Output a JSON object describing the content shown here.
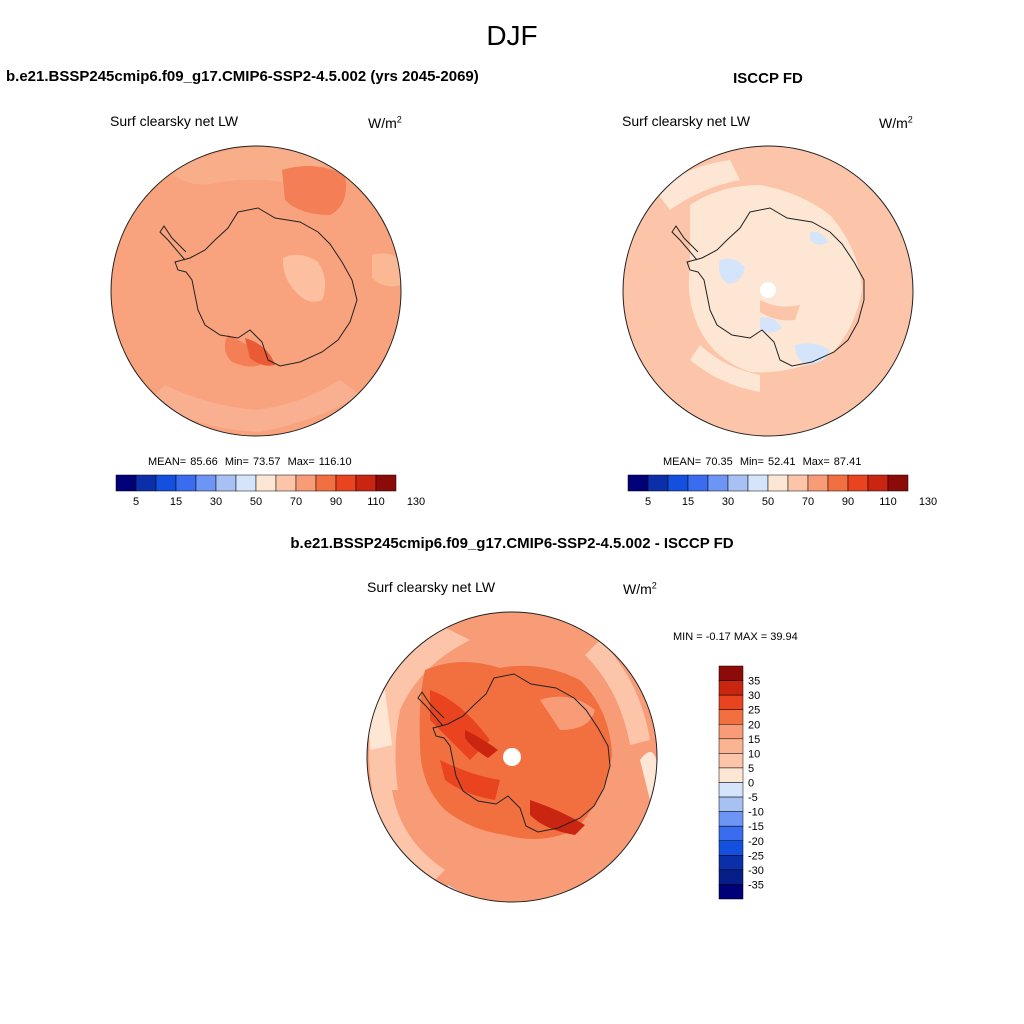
{
  "figure": {
    "season": "DJF"
  },
  "panels": [
    {
      "title": "b.e21.BSSP245cmip6.f09_g17.CMIP6-SSP2-4.5.002 (yrs 2045-2069)",
      "variable": "Surf clearsky net LW",
      "unit": "W/m",
      "unit_sup": "2",
      "stats": {
        "mean_label": "MEAN=",
        "mean": "85.66",
        "min_label": "Min=",
        "min": "73.57",
        "max_label": "Max=",
        "max": "116.10"
      }
    },
    {
      "title": "ISCCP FD",
      "variable": "Surf clearsky net LW",
      "unit": "W/m",
      "unit_sup": "2",
      "stats": {
        "mean_label": "MEAN=",
        "mean": "70.35",
        "min_label": "Min=",
        "min": "52.41",
        "max_label": "Max=",
        "max": "87.41"
      }
    },
    {
      "title": "b.e21.BSSP245cmip6.f09_g17.CMIP6-SSP2-4.5.002 - ISCCP FD",
      "variable": "Surf clearsky net LW",
      "unit": "W/m",
      "unit_sup": "2",
      "minmax": "MIN =  -0.17 MAX =  39.94"
    }
  ],
  "chart_data": [
    {
      "type": "heatmap",
      "projection": "south polar stereographic",
      "region": "Antarctica",
      "colorbar": {
        "orientation": "horizontal",
        "tick_labels": [
          "5",
          "15",
          "30",
          "50",
          "70",
          "90",
          "110",
          "130"
        ],
        "colors": [
          "#000078",
          "#0a2fa8",
          "#1450e0",
          "#3a6cf0",
          "#6d95f5",
          "#a7c1f5",
          "#d4e4fb",
          "#fde6d3",
          "#fcc4a8",
          "#f89c78",
          "#f2703f",
          "#e9431f",
          "#c92510",
          "#8c0a08"
        ]
      },
      "dominant_value_range": [
        80,
        90
      ],
      "highlight_range": [
        90,
        100
      ],
      "stats": {
        "mean": 85.66,
        "min": 73.57,
        "max": 116.1
      }
    },
    {
      "type": "heatmap",
      "projection": "south polar stereographic",
      "region": "Antarctica",
      "colorbar": {
        "orientation": "horizontal",
        "tick_labels": [
          "5",
          "15",
          "30",
          "50",
          "70",
          "90",
          "110",
          "130"
        ],
        "colors": [
          "#000078",
          "#0a2fa8",
          "#1450e0",
          "#3a6cf0",
          "#6d95f5",
          "#a7c1f5",
          "#d4e4fb",
          "#fde6d3",
          "#fcc4a8",
          "#f89c78",
          "#f2703f",
          "#e9431f",
          "#c92510",
          "#8c0a08"
        ]
      },
      "dominant_value_range": [
        70,
        80
      ],
      "continent_value_range": [
        60,
        70
      ],
      "stats": {
        "mean": 70.35,
        "min": 52.41,
        "max": 87.41
      }
    },
    {
      "type": "heatmap",
      "projection": "south polar stereographic",
      "region": "Antarctica",
      "colorbar": {
        "orientation": "vertical",
        "tick_labels": [
          "35",
          "30",
          "25",
          "20",
          "15",
          "10",
          "5",
          "0",
          "-5",
          "-10",
          "-15",
          "-20",
          "-25",
          "-30",
          "-35"
        ],
        "colors": [
          "#8c0a08",
          "#c92510",
          "#e9431f",
          "#f2703f",
          "#f89c78",
          "#fbb491",
          "#fcc4a8",
          "#fde6d3",
          "#d4e4fb",
          "#a7c1f5",
          "#6d95f5",
          "#3a6cf0",
          "#1450e0",
          "#0a2fa8",
          "#061e88",
          "#000078"
        ]
      },
      "dominant_value_range": [
        15,
        25
      ],
      "stats": {
        "min": -0.17,
        "max": 39.94
      }
    }
  ]
}
